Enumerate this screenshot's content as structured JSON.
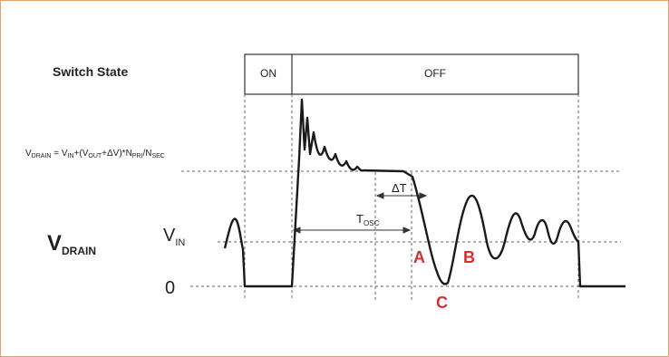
{
  "switch_state": {
    "label": "Switch State",
    "on_label": "ON",
    "off_label": "OFF"
  },
  "equation": {
    "lhs_main": "V",
    "lhs_sub": "DRAIN",
    "rhs_a": " = V",
    "rhs_a_sub": "IN",
    "rhs_b": "+(V",
    "rhs_b_sub": "OUT",
    "rhs_c": "+ΔV)*N",
    "rhs_c_sub": "PRI",
    "rhs_d": "/N",
    "rhs_d_sub": "SEC"
  },
  "axis": {
    "vdrain_main": "V",
    "vdrain_sub": "DRAIN",
    "vin_main": "V",
    "vin_sub": "IN",
    "zero": "0"
  },
  "timing": {
    "delta_t": "ΔT",
    "t_osc_main": "T",
    "t_osc_sub": "OSC"
  },
  "points": {
    "a": "A",
    "b": "B",
    "c": "C"
  },
  "colors": {
    "waveform": "#1a1a1a",
    "marker": "#d03030",
    "frame": "#e8a070"
  }
}
